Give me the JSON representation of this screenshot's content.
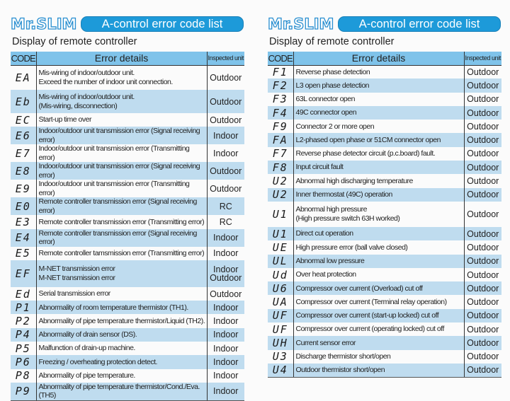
{
  "panels": [
    {
      "logo": "Mr.SLIM",
      "title": "A-control error code list",
      "subtitle": "Display of remote controller",
      "headers": {
        "code": "CODE",
        "details": "Error details",
        "unit": "Inspected unit"
      },
      "rows": [
        {
          "code": "EA",
          "details": "Mis-wiring of indoor/outdoor unit.\nExceed the number of indoor unit connection.",
          "unit": "Outdoor",
          "h": 35
        },
        {
          "code": "Eb",
          "details": "Mis-wiring of indoor/outdoor unit.\n(Mis-wiring, disconnection)",
          "unit": "Outdoor",
          "h": 33
        },
        {
          "code": "EC",
          "details": "Start-up time over",
          "unit": "Outdoor"
        },
        {
          "code": "E6",
          "details": "Indoor/outdoor unit transmission error (Signal receiving error)",
          "unit": "Indoor"
        },
        {
          "code": "E7",
          "details": "Indoor/outdoor unit transmission error (Transmitting error)",
          "unit": "Indoor"
        },
        {
          "code": "E8",
          "details": "Indoor/outdoor unit transmission error (Signal receiving error)",
          "unit": "Outdoor"
        },
        {
          "code": "E9",
          "details": "Indoor/outdoor unit transmission error (Transmitting error)",
          "unit": "Outdoor"
        },
        {
          "code": "E0",
          "details": "Remote controller transmission error (Signal receiving error)",
          "unit": "RC"
        },
        {
          "code": "E3",
          "details": "Remote controller transmission error (Transmitting error)",
          "unit": "RC"
        },
        {
          "code": "E4",
          "details": "Remote controller transmission error (Signal receiving error)",
          "unit": "Indoor"
        },
        {
          "code": "E5",
          "details": "Remote controller tamsmission error (Transmitting error)",
          "unit": "Indoor"
        },
        {
          "code": "EF",
          "details": "M-NET transmission error\nM-NET transmission error",
          "unit": "Indoor\nOutdoor",
          "h": 38
        },
        {
          "code": "Ed",
          "details": "Serial transmission error",
          "unit": "Outdoor"
        },
        {
          "code": "P1",
          "details": "Abnormality of room temperature thermistor (TH1).",
          "unit": "Indoor"
        },
        {
          "code": "P2",
          "details": "Abnormality of pipe temperature thermistor/Liquid (TH2).",
          "unit": "Indoor"
        },
        {
          "code": "P4",
          "details": "Abnormality of drain sensor (DS).",
          "unit": "Indoor"
        },
        {
          "code": "P5",
          "details": "Malfunction of drain-up machine.",
          "unit": "Indoor"
        },
        {
          "code": "P6",
          "details": "Freezing / overheating protection detect.",
          "unit": "Indoor"
        },
        {
          "code": "P8",
          "details": "Abnormality of pipe temperature.",
          "unit": "Indoor"
        },
        {
          "code": "P9",
          "details": "Abnormality of pipe temperature thermistor/Cond./Eva. (TH5)",
          "unit": "Indoor"
        }
      ]
    },
    {
      "logo": "Mr.SLIM",
      "title": "A-control error code list",
      "subtitle": "Display of remote controller",
      "headers": {
        "code": "CODE",
        "details": "Error details",
        "unit": "Inspected unit"
      },
      "rows": [
        {
          "code": "F1",
          "details": "Reverse phase detection",
          "unit": "Outdoor"
        },
        {
          "code": "F2",
          "details": "L3 open phase detection",
          "unit": "Outdoor"
        },
        {
          "code": "F3",
          "details": "63L connector open",
          "unit": "Outdoor"
        },
        {
          "code": "F4",
          "details": "49C connector open",
          "unit": "Outdoor"
        },
        {
          "code": "F9",
          "details": "Connector 2 or more open",
          "unit": "Outdoor"
        },
        {
          "code": "FA",
          "details": "L2-phased open phase or 51CM connector open",
          "unit": "Outdoor"
        },
        {
          "code": "F7",
          "details": "Reverse phase detector circuit (p.c.board) fault.",
          "unit": "Outdoor"
        },
        {
          "code": "F8",
          "details": "Input circuit fault",
          "unit": "Outdoor"
        },
        {
          "code": "U2",
          "details": "Abnormal high discharging temperature",
          "unit": "Outdoor"
        },
        {
          "code": "U2",
          "details": "Inner thermostat (49C) operation",
          "unit": "Outdoor"
        },
        {
          "code": "U1",
          "details": "Abnormal high pressure\n(High pressure switch 63H worked)",
          "unit": "Outdoor",
          "h": 36
        },
        {
          "code": "U1",
          "details": "Direct cut operation",
          "unit": "Outdoor"
        },
        {
          "code": "UE",
          "details": "High pressure error (ball valve closed)",
          "unit": "Outdoor"
        },
        {
          "code": "UL",
          "details": "Abnormal low pressure",
          "unit": "Outdoor"
        },
        {
          "code": "Ud",
          "details": "Over heat protection",
          "unit": "Outdoor"
        },
        {
          "code": "U6",
          "details": "Compressor over current (Overload) cut off",
          "unit": "Outdoor"
        },
        {
          "code": "UA",
          "details": "Compressor over current (Terminal relay operation)",
          "unit": "Outdoor"
        },
        {
          "code": "UF",
          "details": "Compressor over current (start-up locked) cut off",
          "unit": "Outdoor"
        },
        {
          "code": "UF",
          "details": "Compressor over current (operating locked) cut off",
          "unit": "Outdoor"
        },
        {
          "code": "UH",
          "details": "Current sensor error",
          "unit": "Outdoor"
        },
        {
          "code": "U3",
          "details": "Discharge thermistor short/open",
          "unit": "Outdoor"
        },
        {
          "code": "U4",
          "details": "Outdoor thermistor short/open",
          "unit": "Outdoor"
        }
      ]
    }
  ],
  "colors": {
    "header": "#7fc3ea",
    "stripe": "#bfdcef",
    "pill": "#1d9ad9"
  }
}
